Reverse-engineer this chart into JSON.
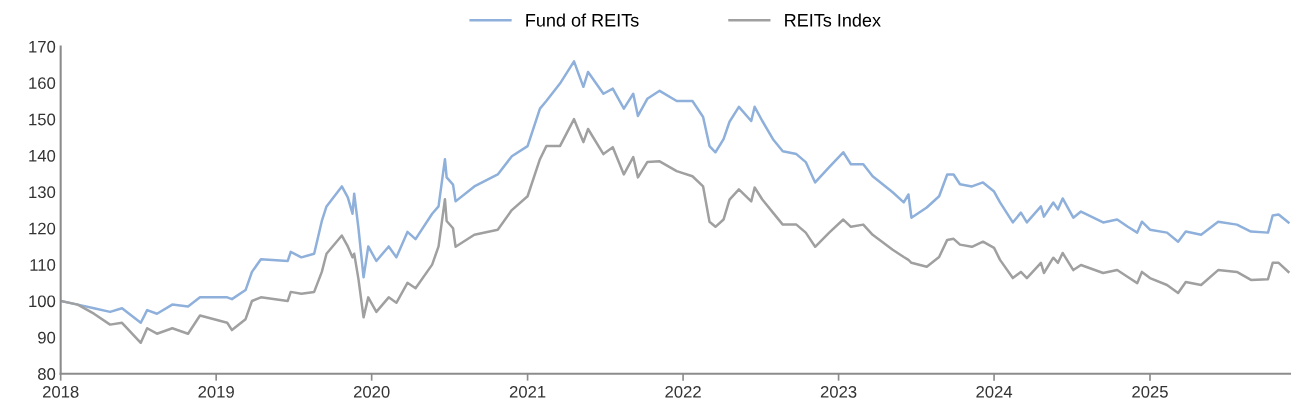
{
  "chart_data": {
    "type": "line",
    "legend": "top",
    "grid": false,
    "marker": "none",
    "line_style": "solid",
    "x": [
      "2018-01-01",
      "2018-02-10",
      "2018-03-20",
      "2018-04-27",
      "2018-05-25",
      "2018-07-08",
      "2018-07-23",
      "2018-08-15",
      "2018-09-20",
      "2018-10-27",
      "2018-11-24",
      "2019-01-27",
      "2019-02-07",
      "2019-03-11",
      "2019-03-26",
      "2019-04-16",
      "2019-06-18",
      "2019-06-25",
      "2019-07-20",
      "2019-08-19",
      "2019-09-06",
      "2019-09-17",
      "2019-10-23",
      "2019-11-06",
      "2019-11-17",
      "2019-11-21",
      "2019-12-01",
      "2019-12-13",
      "2019-12-24",
      "2020-01-12",
      "2020-02-10",
      "2020-02-28",
      "2020-03-25",
      "2020-04-13",
      "2020-05-22",
      "2020-06-06",
      "2020-06-21",
      "2020-06-25",
      "2020-07-10",
      "2020-07-16",
      "2020-08-29",
      "2020-10-23",
      "2020-11-25",
      "2021-01-01",
      "2021-01-30",
      "2021-02-14",
      "2021-03-18",
      "2021-04-20",
      "2021-05-12",
      "2021-05-23",
      "2021-06-28",
      "2021-07-20",
      "2021-08-15",
      "2021-09-06",
      "2021-09-17",
      "2021-10-09",
      "2021-11-07",
      "2021-12-17",
      "2022-01-23",
      "2022-02-17",
      "2022-03-04",
      "2022-03-18",
      "2022-04-06",
      "2022-04-20",
      "2022-05-12",
      "2022-06-10",
      "2022-06-18",
      "2022-07-06",
      "2022-07-31",
      "2022-08-23",
      "2022-09-24",
      "2022-10-16",
      "2022-11-07",
      "2022-12-10",
      "2023-01-12",
      "2023-01-30",
      "2023-02-28",
      "2023-03-22",
      "2023-05-08",
      "2023-06-03",
      "2023-06-14",
      "2023-06-21",
      "2023-07-27",
      "2023-08-25",
      "2023-09-13",
      "2023-09-28",
      "2023-10-13",
      "2023-11-10",
      "2023-12-06",
      "2024-01-01",
      "2024-01-15",
      "2024-02-14",
      "2024-03-04",
      "2024-03-18",
      "2024-04-20",
      "2024-04-27",
      "2024-05-19",
      "2024-05-30",
      "2024-06-10",
      "2024-07-05",
      "2024-07-23",
      "2024-09-13",
      "2024-10-16",
      "2024-11-10",
      "2024-12-02",
      "2024-12-13",
      "2025-01-01",
      "2025-02-10",
      "2025-03-08",
      "2025-03-26",
      "2025-05-01",
      "2025-06-10",
      "2025-07-24",
      "2025-08-26",
      "2025-10-05",
      "2025-10-16",
      "2025-10-30",
      "2025-11-22"
    ],
    "series": [
      {
        "name": "Fund of REITs",
        "color": "#8eb0db",
        "values": [
          100,
          99,
          98,
          97,
          98,
          94,
          97.5,
          96.5,
          99,
          98.5,
          101,
          101,
          100.5,
          103,
          108,
          111.5,
          111,
          113.5,
          112,
          113,
          122,
          126,
          131.5,
          128.5,
          124,
          129.5,
          120,
          106.5,
          115,
          111,
          115,
          112,
          119,
          117,
          124,
          126,
          139,
          134,
          132,
          127.4,
          131.5,
          134.8,
          139.8,
          142.6,
          152.9,
          155,
          159.8,
          165.9,
          158.9,
          163,
          157,
          158.4,
          152.9,
          157,
          150.9,
          155.6,
          157.8,
          155,
          155,
          150.6,
          142.6,
          140.9,
          144.5,
          149.3,
          153.4,
          149.5,
          153.4,
          149.5,
          144.5,
          141.2,
          140.4,
          138.2,
          132.6,
          136.8,
          140.9,
          137.6,
          137.6,
          134.3,
          129.9,
          127.1,
          129.3,
          122.9,
          125.7,
          128.8,
          134.8,
          134.8,
          132.1,
          131.5,
          132.6,
          130.1,
          127.1,
          121.6,
          124.3,
          121.6,
          126,
          123.2,
          127.1,
          125.2,
          128.2,
          122.9,
          124.6,
          121.6,
          122.4,
          120.4,
          118.8,
          121.8,
          119.6,
          118.8,
          116.3,
          119.1,
          118.2,
          121.8,
          121,
          119.1,
          118.8,
          123.5,
          123.8,
          121.6
        ]
      },
      {
        "name": "REITs Index",
        "color": "#a0a0a0",
        "values": [
          100,
          99,
          96.5,
          93.5,
          94,
          88.5,
          92.5,
          91,
          92.5,
          91,
          96,
          94,
          92,
          95,
          100,
          101,
          100,
          102.5,
          102,
          102.5,
          108,
          113,
          118,
          115,
          112,
          113,
          106,
          95.5,
          101,
          97,
          101,
          99.5,
          105,
          103.5,
          110,
          115,
          128,
          122,
          120,
          114.9,
          118.2,
          119.6,
          125,
          128.8,
          139,
          142.6,
          142.6,
          150,
          143.7,
          147.3,
          140.4,
          142.3,
          134.8,
          139.6,
          134,
          138.2,
          138.4,
          135.7,
          134.3,
          131.5,
          121.8,
          120.4,
          122.4,
          127.9,
          130.7,
          127.4,
          131.2,
          127.9,
          124.3,
          121,
          121,
          118.8,
          114.9,
          118.8,
          122.4,
          120.4,
          121,
          118.2,
          114.1,
          112.1,
          111.3,
          110.5,
          109.4,
          112.1,
          116.8,
          117.1,
          115.5,
          114.9,
          116.3,
          114.6,
          111.3,
          106.3,
          108,
          106.3,
          110.5,
          107.7,
          111.9,
          110.5,
          113.2,
          108.5,
          109.9,
          107.7,
          108.5,
          106.6,
          104.9,
          108,
          106.3,
          104.4,
          102.2,
          105.2,
          104.4,
          108.5,
          108,
          105.8,
          106,
          110.5,
          110.5,
          108
        ]
      }
    ],
    "xlim": [
      "2018-01-01",
      "2025-11-28"
    ],
    "xticks": [
      {
        "value": "2018-01-01",
        "label": "2018"
      },
      {
        "value": "2019-01-01",
        "label": "2019"
      },
      {
        "value": "2020-01-01",
        "label": "2020"
      },
      {
        "value": "2021-01-01",
        "label": "2021"
      },
      {
        "value": "2022-01-01",
        "label": "2022"
      },
      {
        "value": "2023-01-01",
        "label": "2023"
      },
      {
        "value": "2024-01-01",
        "label": "2024"
      },
      {
        "value": "2025-01-01",
        "label": "2025"
      }
    ],
    "ylim": [
      80,
      170
    ],
    "yticks": [
      80,
      90,
      100,
      110,
      120,
      130,
      140,
      150,
      160,
      170
    ]
  }
}
